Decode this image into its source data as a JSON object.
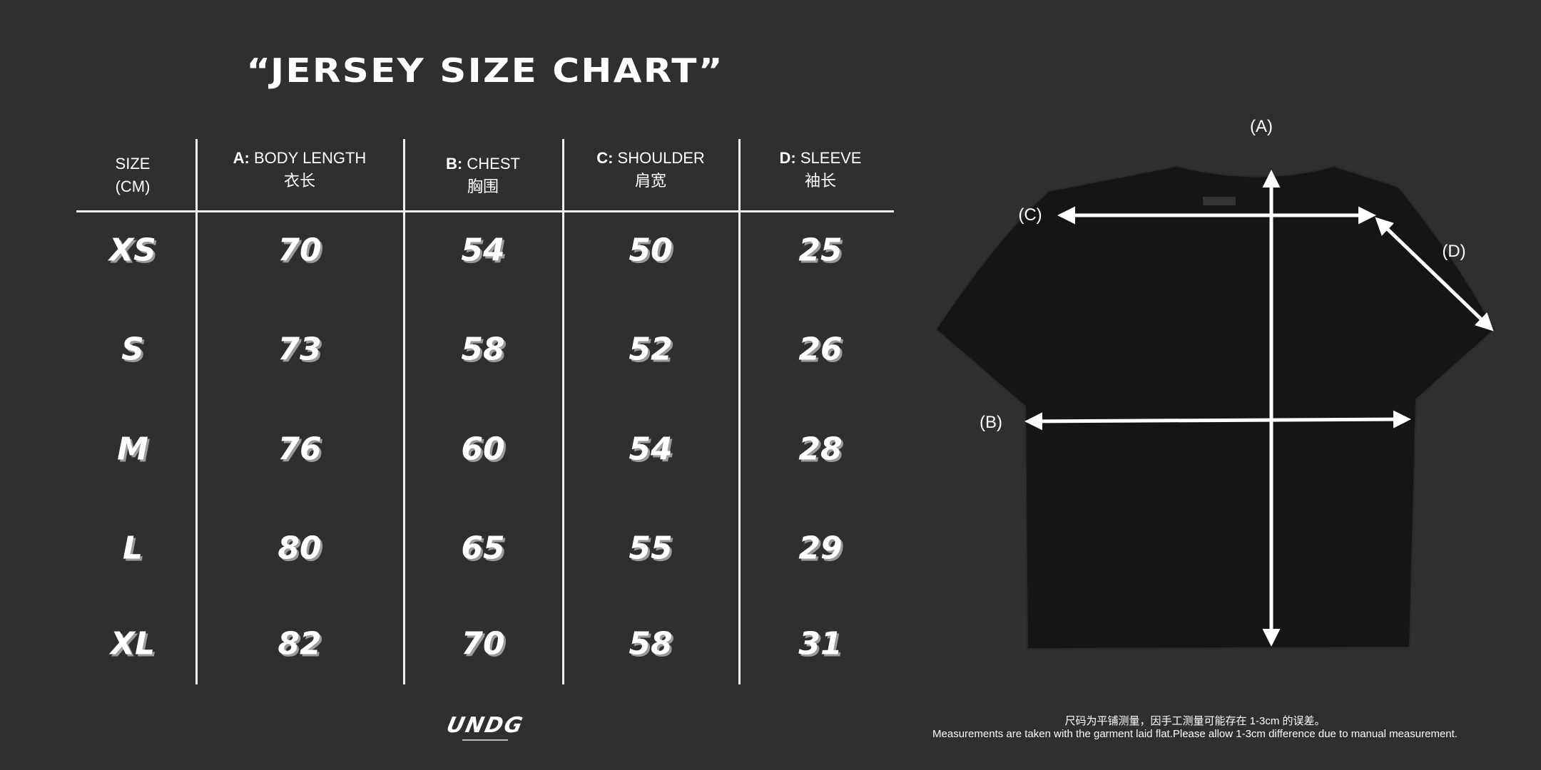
{
  "title": "“JERSEY SIZE CHART”",
  "table": {
    "headers": [
      {
        "key": "",
        "label": "SIZE",
        "sub": "(CM)"
      },
      {
        "key": "A:",
        "label": " BODY LENGTH",
        "sub": "衣长"
      },
      {
        "key": "B:",
        "label": " CHEST",
        "sub": "胸围"
      },
      {
        "key": "C:",
        "label": " SHOULDER",
        "sub": "肩宽"
      },
      {
        "key": "D:",
        "label": " SLEEVE",
        "sub": "袖长"
      }
    ],
    "rows": [
      [
        "XS",
        "70",
        "54",
        "50",
        "25"
      ],
      [
        "S",
        "73",
        "58",
        "52",
        "26"
      ],
      [
        "M",
        "76",
        "60",
        "54",
        "28"
      ],
      [
        "L",
        "80",
        "65",
        "55",
        "29"
      ],
      [
        "XL",
        "82",
        "70",
        "58",
        "31"
      ]
    ]
  },
  "diagram": {
    "labels": [
      "(A)",
      "(B)",
      "(C)",
      "(D)"
    ],
    "shirt_color": "#151515",
    "arrow_color": "#ffffff"
  },
  "logo": {
    "text": "UNDG"
  },
  "footer": {
    "zh": "尺码为平铺测量，因手工测量可能存在 1-3cm 的误差。",
    "en": "Measurements are taken with the garment laid flat.Please allow 1-3cm difference due to manual measurement."
  }
}
